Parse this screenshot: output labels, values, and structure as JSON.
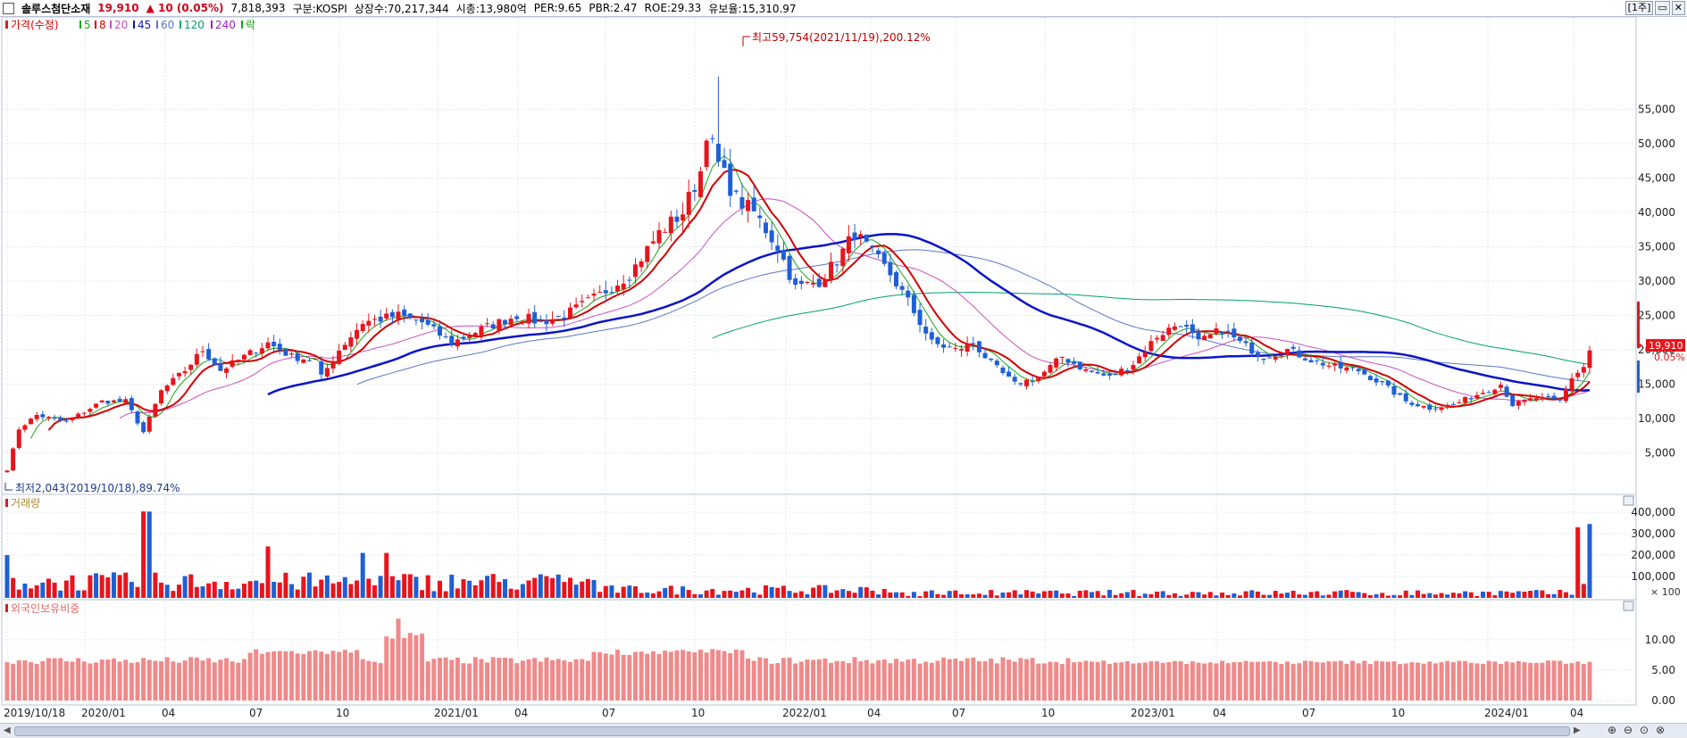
{
  "header": {
    "stock_name": "솔루스첨단소재",
    "price": "19,910",
    "change": "▲ 10 (0.05%)",
    "volume": "7,818,393",
    "market": "구분:KOSPI",
    "shares": "상장수:70,217,344",
    "mcap": "시총:13,980억",
    "per": "PER:9.65",
    "pbr": "PBR:2.47",
    "roe": "ROE:29.33",
    "retention": "유보율:15,310.97",
    "period_button": "[1주]"
  },
  "legend": {
    "price": "가격(수정)",
    "ma5": "5",
    "ma8": "8",
    "ma20": "20",
    "ma45": "45",
    "ma60": "60",
    "ma120": "120",
    "ma240": "240",
    "fall": "락"
  },
  "annotations": {
    "high": "최고59,754(2021/11/19),200.12%",
    "low": "최저2,043(2019/10/18),89.74%",
    "last_price": "19,910",
    "last_change": "0.05%"
  },
  "volume_panel": {
    "title": "거래량",
    "unit": "× 100"
  },
  "foreign_panel": {
    "title": "외국인보유비중"
  },
  "x_labels": [
    "2019/10/18",
    "2020/01",
    "04",
    "07",
    "10",
    "2021/01",
    "04",
    "07",
    "10",
    "2022/01",
    "04",
    "07",
    "10",
    "2023/01",
    "04",
    "07",
    "10",
    "2024/01",
    "04"
  ],
  "price_ticks": [
    "55,000",
    "50,000",
    "45,000",
    "40,000",
    "35,000",
    "30,000",
    "25,000",
    "20,000",
    "15,000",
    "10,000",
    "5,000"
  ],
  "volume_ticks": [
    "400,000",
    "300,000",
    "200,000",
    "100,000"
  ],
  "foreign_ticks": [
    "10.00",
    "5.00",
    "0.00"
  ],
  "colors": {
    "up": "#e8141c",
    "down": "#1f5fd6",
    "ma5": "#1aa51a",
    "ma8": "#d10000",
    "ma20": "#c850c0",
    "ma45": "#0a14c8",
    "ma60": "#5a78c8",
    "ma120": "#00a070",
    "ma240": "#a01ec8",
    "foreign": "#f08a8a"
  },
  "chart_data": {
    "type": "candlestick",
    "title": "솔루스첨단소재",
    "x_unit": "weekly",
    "x_range": [
      "2019/10/18",
      "2024/04"
    ],
    "ylim_price": [
      0,
      60000
    ],
    "ylim_volume": [
      0,
      450000
    ],
    "ylim_foreign": [
      0,
      15
    ],
    "high": {
      "value": 59754,
      "date": "2021/11/19"
    },
    "low": {
      "value": 2043,
      "date": "2019/10/18"
    },
    "last_close": 19910,
    "series": [
      {
        "name": "가격(수정)",
        "anchors": [
          [
            0,
            2500
          ],
          [
            2,
            8500
          ],
          [
            5,
            10500
          ],
          [
            10,
            9500
          ],
          [
            16,
            12500
          ],
          [
            20,
            12500
          ],
          [
            23,
            8000
          ],
          [
            26,
            14000
          ],
          [
            30,
            17000
          ],
          [
            33,
            20000
          ],
          [
            36,
            17000
          ],
          [
            40,
            19000
          ],
          [
            44,
            21000
          ],
          [
            48,
            19000
          ],
          [
            52,
            18500
          ],
          [
            53,
            16000
          ],
          [
            56,
            20000
          ],
          [
            60,
            24000
          ],
          [
            66,
            25000
          ],
          [
            70,
            24000
          ],
          [
            75,
            21000
          ],
          [
            80,
            23000
          ],
          [
            86,
            25000
          ],
          [
            90,
            24000
          ],
          [
            94,
            25000
          ],
          [
            100,
            28000
          ],
          [
            105,
            31000
          ],
          [
            110,
            37000
          ],
          [
            114,
            40000
          ],
          [
            117,
            46000
          ],
          [
            118,
            52000
          ],
          [
            120,
            47000
          ],
          [
            123,
            42000
          ],
          [
            126,
            40000
          ],
          [
            130,
            35000
          ],
          [
            133,
            29000
          ],
          [
            137,
            30000
          ],
          [
            140,
            33000
          ],
          [
            143,
            37000
          ],
          [
            146,
            34000
          ],
          [
            149,
            31000
          ],
          [
            152,
            27000
          ],
          [
            156,
            21000
          ],
          [
            160,
            20000
          ],
          [
            163,
            21000
          ],
          [
            166,
            18000
          ],
          [
            170,
            15000
          ],
          [
            174,
            16000
          ],
          [
            178,
            19000
          ],
          [
            182,
            17000
          ],
          [
            186,
            16000
          ],
          [
            190,
            18000
          ],
          [
            194,
            22000
          ],
          [
            198,
            24000
          ],
          [
            201,
            21000
          ],
          [
            205,
            23000
          ],
          [
            208,
            21000
          ],
          [
            212,
            19000
          ],
          [
            216,
            20000
          ],
          [
            220,
            18500
          ],
          [
            224,
            17500
          ],
          [
            228,
            17000
          ],
          [
            232,
            15000
          ],
          [
            236,
            12500
          ],
          [
            240,
            11500
          ],
          [
            244,
            12000
          ],
          [
            248,
            13500
          ],
          [
            252,
            15000
          ],
          [
            254,
            12000
          ],
          [
            258,
            13000
          ],
          [
            262,
            12500
          ],
          [
            264,
            16000
          ],
          [
            266,
            17500
          ],
          [
            267,
            19910
          ]
        ]
      },
      {
        "name": "거래량",
        "values_note": "weekly volume, peaks ~400,000 (2020/04), ~350,000 (2024/04)"
      },
      {
        "name": "외국인보유비중",
        "range": [
          5,
          14
        ]
      }
    ]
  }
}
